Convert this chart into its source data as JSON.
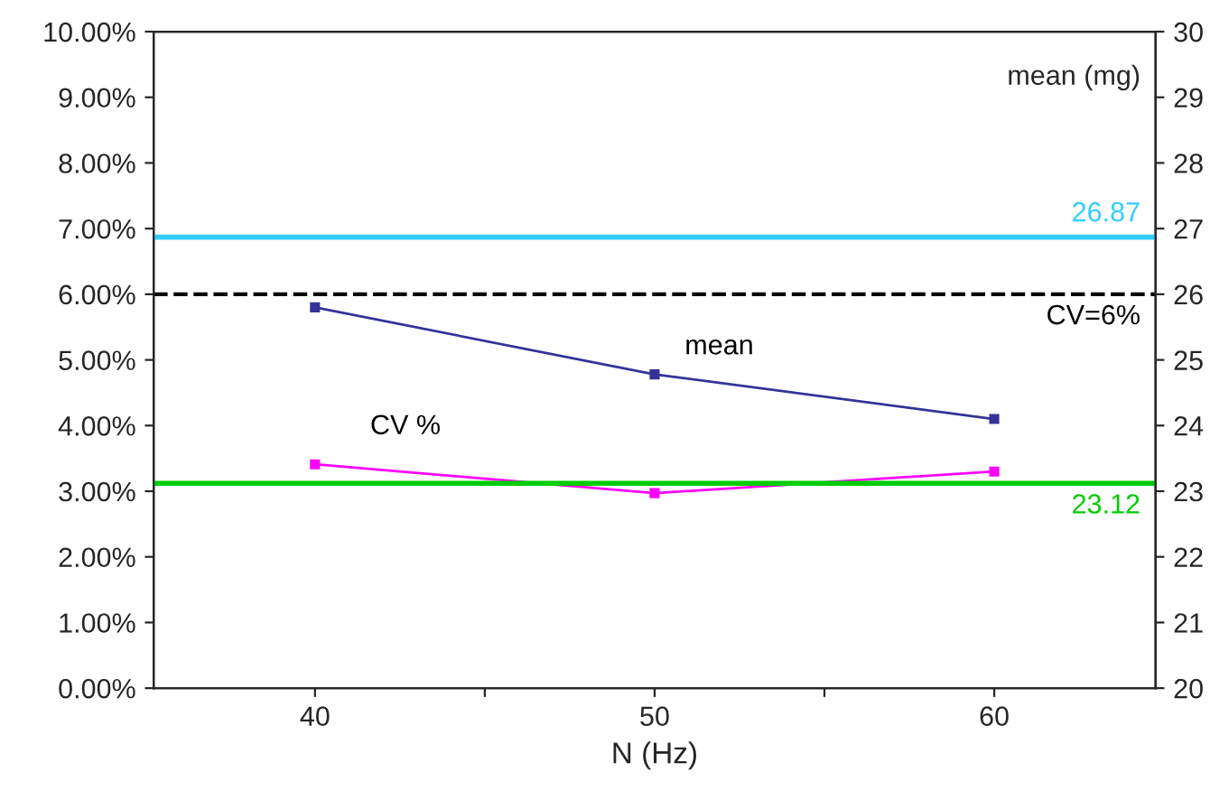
{
  "chart_data": {
    "type": "line",
    "xlabel": "N (Hz)",
    "y2label": "mean (mg)",
    "xlim": [
      35.25,
      64.75
    ],
    "xticks": [
      40,
      {
        "value": 45,
        "label": null
      },
      50,
      {
        "value": 55,
        "label": null
      },
      60
    ],
    "ylim": [
      0,
      10
    ],
    "yticks": [
      {
        "value": 0,
        "label": "0.00%"
      },
      {
        "value": 1,
        "label": "1.00%"
      },
      {
        "value": 2,
        "label": "2.00%"
      },
      {
        "value": 3,
        "label": "3.00%"
      },
      {
        "value": 4,
        "label": "4.00%"
      },
      {
        "value": 5,
        "label": "5.00%"
      },
      {
        "value": 6,
        "label": "6.00%"
      },
      {
        "value": 7,
        "label": "7.00%"
      },
      {
        "value": 8,
        "label": "8.00%"
      },
      {
        "value": 9,
        "label": "9.00%"
      },
      {
        "value": 10,
        "label": "10.00%"
      }
    ],
    "y2lim": [
      20,
      30
    ],
    "y2ticks": [
      20,
      21,
      22,
      23,
      24,
      25,
      26,
      27,
      28,
      29,
      30
    ],
    "x": [
      40,
      50,
      60
    ],
    "series": [
      {
        "name": "mean",
        "color": "#333399",
        "axis": "y2",
        "values": [
          25.8,
          24.78,
          24.1
        ]
      },
      {
        "name": "CV %",
        "color": "#ff00ff",
        "values": [
          3.41,
          2.97,
          3.3
        ]
      }
    ],
    "ref_lines": [
      {
        "axis": "y2",
        "value": 26.87,
        "label": "26.87",
        "color": "#33ccff",
        "line_style": "solid"
      },
      {
        "axis": "y",
        "value": 6,
        "label": "CV=6%",
        "color": "#000000",
        "line_style": "dashed"
      },
      {
        "axis": "y2",
        "value": 23.12,
        "label": "23.12",
        "color": "#00cc00",
        "line_style": "solid"
      }
    ],
    "marker": "square",
    "line_style": "solid",
    "grid": false,
    "legend": false
  }
}
